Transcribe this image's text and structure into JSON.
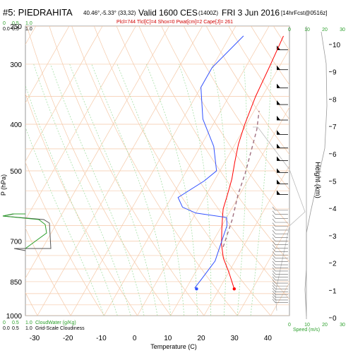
{
  "header": {
    "station": "#5: PIEDRAHITA",
    "coords": "40.46°,-5.33° (33,32)",
    "valid": "Valid 1600 CES",
    "utc": "(1400Z)",
    "date": "FRI 3 Jun 2016",
    "forecast": "[14hrFcst@0516z]",
    "params": "Plcl=744 Tlcl[C]=4 Shox=0 Pwat[cm]=2 Cape[J]= 261"
  },
  "colors": {
    "temperature": "#ff0000",
    "dewpoint": "#3050ff",
    "parcel": "#a07080",
    "isobar": "#f5c9a8",
    "isotherm": "#f5c9a8",
    "dry_adiabat": "#f5c9a8",
    "moist_adiabat": "#a8e0a8",
    "cloud": "#2ca02c",
    "speed": "#2ca02c",
    "height_profile": "#999999"
  },
  "chart_data": {
    "type": "line",
    "title": "",
    "xlabel": "Temperature (C)",
    "ylabel": "P (hPa)",
    "y2label": "Height (km)",
    "xlim": [
      -35,
      46
    ],
    "ylim": [
      1000,
      250
    ],
    "x_ticks": [
      "-30",
      "-20",
      "-10",
      "0",
      "10",
      "20",
      "30",
      "40"
    ],
    "x_tick_values": [
      -30,
      -20,
      -10,
      0,
      10,
      20,
      30,
      40
    ],
    "p_ticks": [
      "250",
      "300",
      "400",
      "500",
      "700",
      "850",
      "1000"
    ],
    "p_tick_values": [
      250,
      300,
      400,
      500,
      700,
      850,
      1000
    ],
    "height_ticks": [
      "0",
      "1",
      "2",
      "3",
      "4",
      "5",
      "6",
      "7",
      "8",
      "9",
      "10"
    ],
    "height_tick_values": [
      0,
      1,
      2,
      3,
      4,
      5,
      6,
      7,
      8,
      9,
      10
    ],
    "series": [
      {
        "points": [
          [
            24.5,
            880
          ],
          [
            20,
            812
          ],
          [
            16,
            760
          ],
          [
            13,
            710
          ],
          [
            10.5,
            660
          ],
          [
            8.5,
            620
          ],
          [
            7.5,
            600
          ],
          [
            6.5,
            565
          ],
          [
            5,
            520
          ],
          [
            3,
            480
          ],
          [
            1,
            440
          ],
          [
            -0.5,
            400
          ],
          [
            -2,
            350
          ],
          [
            -3,
            300
          ],
          [
            -4,
            262
          ]
        ]
      },
      {
        "points": [
          [
            13,
            880
          ],
          [
            12.5,
            875
          ],
          [
            13,
            840
          ],
          [
            14,
            770
          ],
          [
            13,
            720
          ],
          [
            11.5,
            650
          ],
          [
            10,
            625
          ],
          [
            0,
            612
          ],
          [
            -5,
            595
          ],
          [
            -8,
            568
          ],
          [
            -3,
            525
          ],
          [
            -1,
            500
          ],
          [
            -6,
            445
          ],
          [
            -14,
            390
          ],
          [
            -20,
            335
          ],
          [
            -20,
            305
          ],
          [
            -16,
            262
          ]
        ]
      },
      {
        "points": [
          [
            14,
            720
          ],
          [
            12,
            630
          ],
          [
            9.5,
            560
          ],
          [
            8,
            505
          ],
          [
            6,
            455
          ],
          [
            4,
            410
          ],
          [
            1.5,
            375
          ]
        ]
      }
    ],
    "markers": [
      {
        "x": 24.5,
        "p": 880
      },
      {
        "x": 13.2,
        "p": 880
      }
    ],
    "cloud_axis": {
      "label_water": "CloudWater (g/Kg)",
      "label_cloudiness": "Grid-Scale Cloudiness",
      "ticks_water": [
        "0",
        "0.5",
        "1.0"
      ],
      "ticks_cloud": [
        "0.0",
        "0.5",
        "1.0"
      ]
    },
    "speed_axis": {
      "label": "Speed (m/s)",
      "ticks": [
        "0",
        "10",
        "20",
        "30"
      ],
      "tick_values": [
        0,
        10,
        20,
        30
      ]
    }
  }
}
